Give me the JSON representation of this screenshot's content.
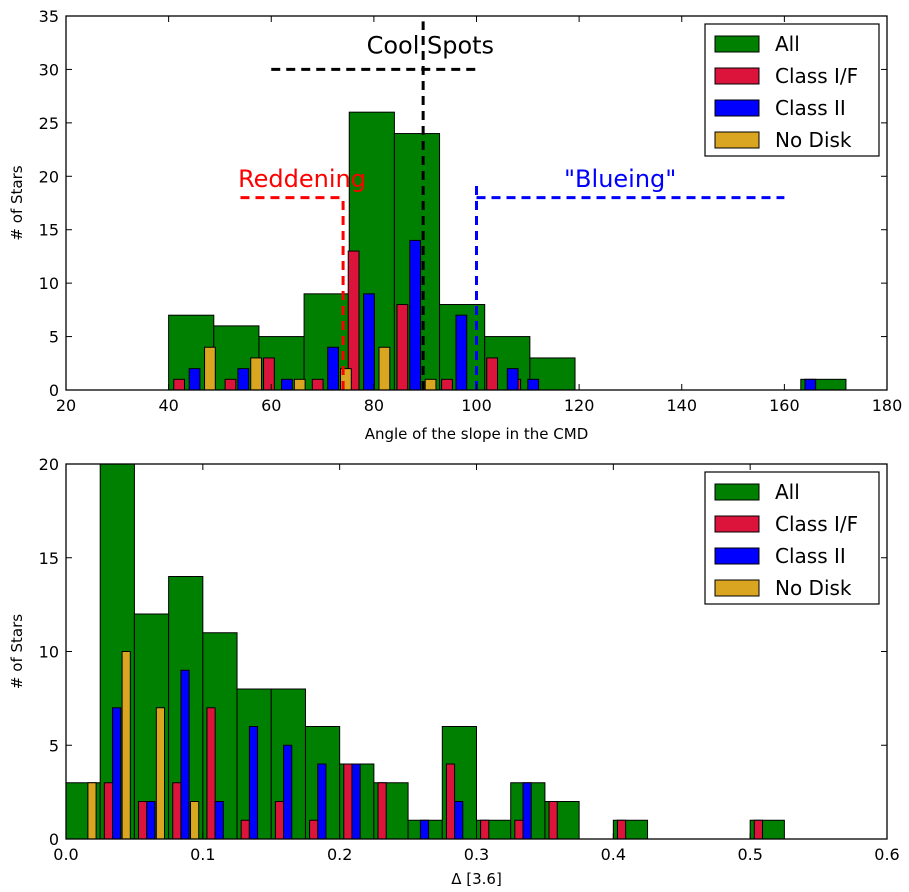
{
  "colors": {
    "All": "#008000",
    "Class I/F": "#dc143c",
    "Class II": "#0000ff",
    "No Disk": "#daa520",
    "reddening": "#ff0000",
    "blueing": "#0000ff",
    "coolspots": "#000000"
  },
  "chart_data": [
    {
      "type": "bar",
      "xlabel": "Angle of the slope in the CMD",
      "ylabel": "# of Stars",
      "xlim": [
        20,
        180
      ],
      "ylim": [
        0,
        35
      ],
      "xticks": [
        20,
        40,
        60,
        80,
        100,
        120,
        140,
        160,
        180
      ],
      "yticks": [
        0,
        5,
        10,
        15,
        20,
        25,
        30,
        35
      ],
      "legend": [
        "All",
        "Class I/F",
        "Class II",
        "No Disk"
      ],
      "legend_position": "top-right",
      "series": [
        {
          "name": "All",
          "bin_width": 8.8,
          "bins": [
            [
              40,
              7
            ],
            [
              48.8,
              6
            ],
            [
              57.6,
              5
            ],
            [
              66.4,
              9
            ],
            [
              75.2,
              26
            ],
            [
              84,
              24
            ],
            [
              92.8,
              8
            ],
            [
              101.6,
              5
            ],
            [
              110.4,
              3
            ],
            [
              163.2,
              1
            ]
          ]
        },
        {
          "name": "Class I/F",
          "bin_width": 2.1,
          "bins": [
            [
              41,
              1
            ],
            [
              51,
              1
            ],
            [
              58.5,
              3
            ],
            [
              68,
              1
            ],
            [
              75,
              13
            ],
            [
              84.5,
              8
            ],
            [
              93.2,
              1
            ],
            [
              102,
              3
            ],
            [
              106.5,
              1
            ]
          ]
        },
        {
          "name": "Class II",
          "bin_width": 2.1,
          "bins": [
            [
              44,
              2
            ],
            [
              53.5,
              2
            ],
            [
              62,
              1
            ],
            [
              71,
              4
            ],
            [
              78,
              9
            ],
            [
              87,
              14
            ],
            [
              96,
              7
            ],
            [
              110,
              1
            ],
            [
              106,
              2
            ],
            [
              164,
              1
            ]
          ]
        },
        {
          "name": "No Disk",
          "bin_width": 2.1,
          "bins": [
            [
              47,
              4
            ],
            [
              56,
              3
            ],
            [
              64.5,
              1
            ],
            [
              73.5,
              2
            ],
            [
              81,
              4
            ],
            [
              90,
              1
            ]
          ]
        }
      ],
      "annotations": [
        {
          "text": "Cool Spots",
          "color": "coolspots",
          "x": 91,
          "y": 31.5
        },
        {
          "text": "Reddening",
          "color": "reddening",
          "x": 66,
          "y": 19
        },
        {
          "text": "\"Blueing\"",
          "color": "blueing",
          "x": 128,
          "y": 19
        }
      ],
      "reference_lines": [
        {
          "name": "coolspots-vertical",
          "color": "coolspots",
          "x": [
            89.6,
            89.6
          ],
          "y": [
            0,
            34.5
          ]
        },
        {
          "name": "coolspots-horizontal",
          "color": "coolspots",
          "x": [
            60,
            100
          ],
          "y": [
            30,
            30
          ]
        },
        {
          "name": "reddening-horizontal",
          "color": "reddening",
          "x": [
            54,
            74
          ],
          "y": [
            18,
            18
          ]
        },
        {
          "name": "reddening-vertical",
          "color": "reddening",
          "x": [
            74,
            74
          ],
          "y": [
            0,
            18
          ]
        },
        {
          "name": "reddening-horizontal-right",
          "color": "reddening",
          "x": [
            74,
            74
          ],
          "y": [
            0,
            0
          ]
        },
        {
          "name": "blueing-vertical",
          "color": "blueing",
          "x": [
            100,
            100
          ],
          "y": [
            0,
            19.5
          ]
        },
        {
          "name": "blueing-horizontal",
          "color": "blueing",
          "x": [
            100,
            160
          ],
          "y": [
            18,
            18
          ]
        }
      ]
    },
    {
      "type": "bar",
      "xlabel": "Δ [3.6]",
      "ylabel": "# of Stars",
      "xlim": [
        0.0,
        0.6
      ],
      "ylim": [
        0,
        20
      ],
      "xticks": [
        "0.0",
        "0.1",
        "0.2",
        "0.3",
        "0.4",
        "0.5",
        "0.6"
      ],
      "yticks": [
        0,
        5,
        10,
        15,
        20
      ],
      "legend": [
        "All",
        "Class I/F",
        "Class II",
        "No Disk"
      ],
      "legend_position": "top-right",
      "series": [
        {
          "name": "All",
          "bin_width": 0.025,
          "bins": [
            [
              0,
              3
            ],
            [
              0.025,
              20
            ],
            [
              0.05,
              12
            ],
            [
              0.075,
              14
            ],
            [
              0.1,
              11
            ],
            [
              0.125,
              8
            ],
            [
              0.15,
              8
            ],
            [
              0.175,
              6
            ],
            [
              0.2,
              4
            ],
            [
              0.225,
              3
            ],
            [
              0.25,
              1
            ],
            [
              0.275,
              6
            ],
            [
              0.3,
              1
            ],
            [
              0.325,
              3
            ],
            [
              0.35,
              2
            ],
            [
              0.4,
              1
            ],
            [
              0.5,
              1
            ]
          ]
        },
        {
          "name": "Class I/F",
          "bin_width": 0.006,
          "bins": [
            [
              0.028,
              3
            ],
            [
              0.053,
              2
            ],
            [
              0.078,
              3
            ],
            [
              0.103,
              7
            ],
            [
              0.128,
              1
            ],
            [
              0.153,
              2
            ],
            [
              0.178,
              1
            ],
            [
              0.203,
              4
            ],
            [
              0.228,
              3
            ],
            [
              0.278,
              4
            ],
            [
              0.303,
              1
            ],
            [
              0.328,
              1
            ],
            [
              0.353,
              2
            ],
            [
              0.403,
              1
            ],
            [
              0.503,
              1
            ]
          ]
        },
        {
          "name": "Class II",
          "bin_width": 0.006,
          "bins": [
            [
              0.034,
              7
            ],
            [
              0.059,
              2
            ],
            [
              0.084,
              9
            ],
            [
              0.109,
              2
            ],
            [
              0.134,
              6
            ],
            [
              0.159,
              5
            ],
            [
              0.184,
              4
            ],
            [
              0.209,
              4
            ],
            [
              0.259,
              1
            ],
            [
              0.284,
              2
            ],
            [
              0.334,
              3
            ]
          ]
        },
        {
          "name": "No Disk",
          "bin_width": 0.006,
          "bins": [
            [
              0.016,
              3
            ],
            [
              0.041,
              10
            ],
            [
              0.066,
              7
            ],
            [
              0.091,
              2
            ]
          ]
        }
      ]
    }
  ]
}
